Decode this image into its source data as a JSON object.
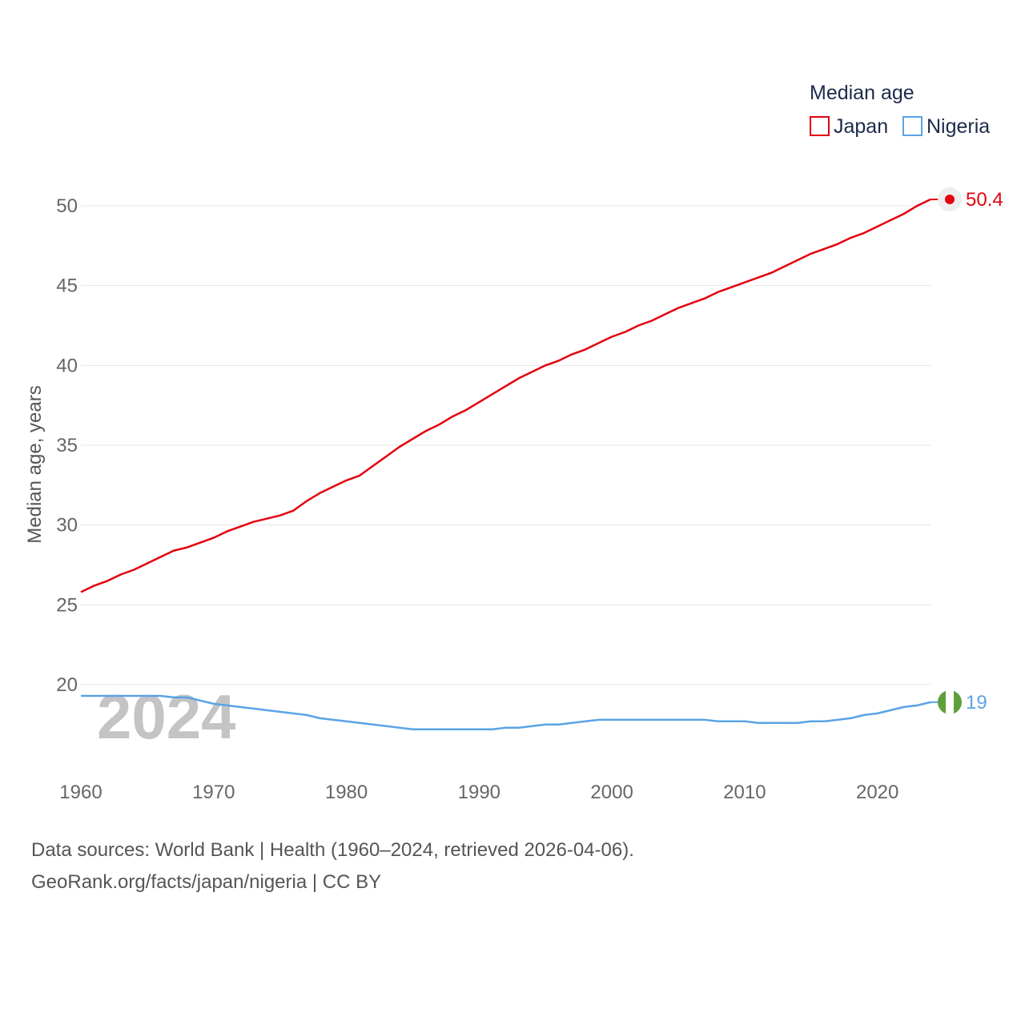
{
  "chart_data": {
    "type": "line",
    "title": "",
    "xlabel": "",
    "ylabel": "Median age, years",
    "xlim": [
      1960,
      2024
    ],
    "ylim": [
      15,
      52
    ],
    "x_ticks": [
      1960,
      1970,
      1980,
      1990,
      2000,
      2010,
      2020
    ],
    "y_ticks": [
      20,
      25,
      30,
      35,
      40,
      45,
      50
    ],
    "grid": true,
    "legend": {
      "title": "Median age",
      "position": "top-right"
    },
    "current_year_label": "2024",
    "series": [
      {
        "name": "Japan",
        "color": "#e3000f",
        "end_label": "50.4",
        "points": [
          [
            1960,
            25.8
          ],
          [
            1961,
            26.2
          ],
          [
            1962,
            26.5
          ],
          [
            1963,
            26.9
          ],
          [
            1964,
            27.2
          ],
          [
            1965,
            27.6
          ],
          [
            1966,
            28.0
          ],
          [
            1967,
            28.4
          ],
          [
            1968,
            28.6
          ],
          [
            1969,
            28.9
          ],
          [
            1970,
            29.2
          ],
          [
            1971,
            29.6
          ],
          [
            1972,
            29.9
          ],
          [
            1973,
            30.2
          ],
          [
            1974,
            30.4
          ],
          [
            1975,
            30.6
          ],
          [
            1976,
            30.9
          ],
          [
            1977,
            31.5
          ],
          [
            1978,
            32.0
          ],
          [
            1979,
            32.4
          ],
          [
            1980,
            32.8
          ],
          [
            1981,
            33.1
          ],
          [
            1982,
            33.7
          ],
          [
            1983,
            34.3
          ],
          [
            1984,
            34.9
          ],
          [
            1985,
            35.4
          ],
          [
            1986,
            35.9
          ],
          [
            1987,
            36.3
          ],
          [
            1988,
            36.8
          ],
          [
            1989,
            37.2
          ],
          [
            1990,
            37.7
          ],
          [
            1991,
            38.2
          ],
          [
            1992,
            38.7
          ],
          [
            1993,
            39.2
          ],
          [
            1994,
            39.6
          ],
          [
            1995,
            40.0
          ],
          [
            1996,
            40.3
          ],
          [
            1997,
            40.7
          ],
          [
            1998,
            41.0
          ],
          [
            1999,
            41.4
          ],
          [
            2000,
            41.8
          ],
          [
            2001,
            42.1
          ],
          [
            2002,
            42.5
          ],
          [
            2003,
            42.8
          ],
          [
            2004,
            43.2
          ],
          [
            2005,
            43.6
          ],
          [
            2006,
            43.9
          ],
          [
            2007,
            44.2
          ],
          [
            2008,
            44.6
          ],
          [
            2009,
            44.9
          ],
          [
            2010,
            45.2
          ],
          [
            2011,
            45.5
          ],
          [
            2012,
            45.8
          ],
          [
            2013,
            46.2
          ],
          [
            2014,
            46.6
          ],
          [
            2015,
            47.0
          ],
          [
            2016,
            47.3
          ],
          [
            2017,
            47.6
          ],
          [
            2018,
            48.0
          ],
          [
            2019,
            48.3
          ],
          [
            2020,
            48.7
          ],
          [
            2021,
            49.1
          ],
          [
            2022,
            49.5
          ],
          [
            2023,
            50.0
          ],
          [
            2024,
            50.4
          ]
        ]
      },
      {
        "name": "Nigeria",
        "color": "#5ba3e6",
        "end_label": "19",
        "points": [
          [
            1960,
            19.3
          ],
          [
            1961,
            19.3
          ],
          [
            1962,
            19.3
          ],
          [
            1963,
            19.3
          ],
          [
            1964,
            19.3
          ],
          [
            1965,
            19.3
          ],
          [
            1966,
            19.3
          ],
          [
            1967,
            19.2
          ],
          [
            1968,
            19.2
          ],
          [
            1969,
            19.0
          ],
          [
            1970,
            18.8
          ],
          [
            1971,
            18.7
          ],
          [
            1972,
            18.6
          ],
          [
            1973,
            18.5
          ],
          [
            1974,
            18.4
          ],
          [
            1975,
            18.3
          ],
          [
            1976,
            18.2
          ],
          [
            1977,
            18.1
          ],
          [
            1978,
            17.9
          ],
          [
            1979,
            17.8
          ],
          [
            1980,
            17.7
          ],
          [
            1981,
            17.6
          ],
          [
            1982,
            17.5
          ],
          [
            1983,
            17.4
          ],
          [
            1984,
            17.3
          ],
          [
            1985,
            17.2
          ],
          [
            1986,
            17.2
          ],
          [
            1987,
            17.2
          ],
          [
            1988,
            17.2
          ],
          [
            1989,
            17.2
          ],
          [
            1990,
            17.2
          ],
          [
            1991,
            17.2
          ],
          [
            1992,
            17.3
          ],
          [
            1993,
            17.3
          ],
          [
            1994,
            17.4
          ],
          [
            1995,
            17.5
          ],
          [
            1996,
            17.5
          ],
          [
            1997,
            17.6
          ],
          [
            1998,
            17.7
          ],
          [
            1999,
            17.8
          ],
          [
            2000,
            17.8
          ],
          [
            2001,
            17.8
          ],
          [
            2002,
            17.8
          ],
          [
            2003,
            17.8
          ],
          [
            2004,
            17.8
          ],
          [
            2005,
            17.8
          ],
          [
            2006,
            17.8
          ],
          [
            2007,
            17.8
          ],
          [
            2008,
            17.7
          ],
          [
            2009,
            17.7
          ],
          [
            2010,
            17.7
          ],
          [
            2011,
            17.6
          ],
          [
            2012,
            17.6
          ],
          [
            2013,
            17.6
          ],
          [
            2014,
            17.6
          ],
          [
            2015,
            17.7
          ],
          [
            2016,
            17.7
          ],
          [
            2017,
            17.8
          ],
          [
            2018,
            17.9
          ],
          [
            2019,
            18.1
          ],
          [
            2020,
            18.2
          ],
          [
            2021,
            18.4
          ],
          [
            2022,
            18.6
          ],
          [
            2023,
            18.7
          ],
          [
            2024,
            18.9
          ]
        ]
      }
    ]
  },
  "footer": {
    "line1": "Data sources: World Bank | Health (1960–2024, retrieved 2026-04-06).",
    "line2": "GeoRank.org/facts/japan/nigeria | CC BY"
  }
}
